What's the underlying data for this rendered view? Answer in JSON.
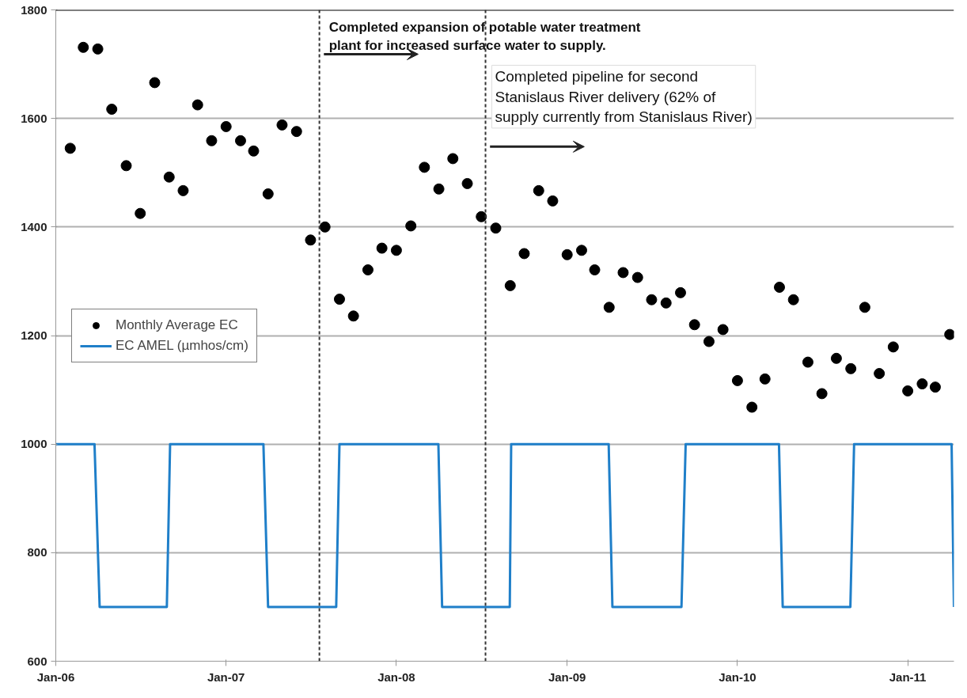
{
  "chart_data": {
    "type": "scatter",
    "ylim": [
      600,
      1800
    ],
    "yticks": [
      600,
      800,
      1000,
      1200,
      1400,
      1600,
      1800
    ],
    "xlim": [
      "2006-01-01",
      "2011-04-10"
    ],
    "xticks": [
      {
        "value": "2006-01-01",
        "label": "Jan-06"
      },
      {
        "value": "2007-01-01",
        "label": "Jan-07"
      },
      {
        "value": "2008-01-01",
        "label": "Jan-08"
      },
      {
        "value": "2009-01-01",
        "label": "Jan-09"
      },
      {
        "value": "2010-01-01",
        "label": "Jan-10"
      },
      {
        "value": "2011-01-01",
        "label": "Jan-11"
      }
    ],
    "grid": "y",
    "legend": "left",
    "series": [
      {
        "name": "Monthly Average EC",
        "color": "#000000",
        "marker": "circle",
        "x": [
          "2006-02-01",
          "2006-03-01",
          "2006-04-01",
          "2006-05-01",
          "2006-06-01",
          "2006-07-01",
          "2006-08-01",
          "2006-09-01",
          "2006-10-01",
          "2006-11-01",
          "2006-12-01",
          "2007-01-01",
          "2007-02-01",
          "2007-03-01",
          "2007-04-01",
          "2007-05-01",
          "2007-06-01",
          "2007-07-01",
          "2007-08-01",
          "2007-09-01",
          "2007-10-01",
          "2007-11-01",
          "2007-12-01",
          "2008-01-01",
          "2008-02-01",
          "2008-03-01",
          "2008-04-01",
          "2008-05-01",
          "2008-06-01",
          "2008-07-01",
          "2008-08-01",
          "2008-09-01",
          "2008-10-01",
          "2008-11-01",
          "2008-12-01",
          "2009-01-01",
          "2009-02-01",
          "2009-03-01",
          "2009-04-01",
          "2009-05-01",
          "2009-06-01",
          "2009-07-01",
          "2009-08-01",
          "2009-09-01",
          "2009-10-01",
          "2009-11-01",
          "2009-12-01",
          "2010-01-01",
          "2010-02-01",
          "2010-03-01",
          "2010-04-01",
          "2010-05-01",
          "2010-06-01",
          "2010-07-01",
          "2010-08-01",
          "2010-09-01",
          "2010-10-01",
          "2010-11-01",
          "2010-12-01",
          "2011-01-01",
          "2011-02-01",
          "2011-03-01",
          "2011-04-01"
        ],
        "values": [
          1545,
          1731,
          1728,
          1617,
          1513,
          1425,
          1666,
          1492,
          1467,
          1625,
          1559,
          1585,
          1559,
          1540,
          1461,
          1588,
          1576,
          1376,
          1400,
          1267,
          1236,
          1321,
          1361,
          1357,
          1402,
          1510,
          1470,
          1526,
          1480,
          1419,
          1398,
          1292,
          1351,
          1467,
          1448,
          1349,
          1357,
          1321,
          1252,
          1316,
          1307,
          1266,
          1260,
          1279,
          1220,
          1189,
          1211,
          1117,
          1068,
          1120,
          1289,
          1266,
          1151,
          1093,
          1158,
          1139,
          1252,
          1130,
          1179,
          1098,
          1111,
          1105,
          1202
        ]
      },
      {
        "name": "EC AMEL (µmhos/cm)",
        "type": "line",
        "color": "#1f7fc9",
        "marker": "none",
        "line_style": "solid",
        "x": [
          "2006-01-01",
          "2006-03-25",
          "2006-04-05",
          "2006-08-27",
          "2006-09-03",
          "2007-03-22",
          "2007-04-01",
          "2007-08-25",
          "2007-09-01",
          "2008-03-31",
          "2008-04-08",
          "2008-08-31",
          "2008-09-03",
          "2009-03-31",
          "2009-04-08",
          "2009-09-03",
          "2009-09-12",
          "2010-03-31",
          "2010-04-08",
          "2010-08-31",
          "2010-09-08",
          "2011-04-05",
          "2011-04-10"
        ],
        "values": [
          1000,
          1000,
          700,
          700,
          1000,
          1000,
          700,
          700,
          1000,
          1000,
          700,
          700,
          1000,
          1000,
          700,
          700,
          1000,
          1000,
          700,
          700,
          1000,
          1000,
          700
        ]
      }
    ],
    "ref_lines": [
      {
        "axis": "x",
        "value": "2007-07-20",
        "color": "#333333",
        "line_style": "dashed",
        "label": "Completed expansion of potable water treatment\nplant for increased surface water to supply."
      },
      {
        "axis": "x",
        "value": "2008-07-10",
        "color": "#333333",
        "line_style": "dashed",
        "label": "Completed pipeline for second\nStanislaus River delivery (62% of\nsupply currently from Stanislaus River)"
      }
    ]
  }
}
